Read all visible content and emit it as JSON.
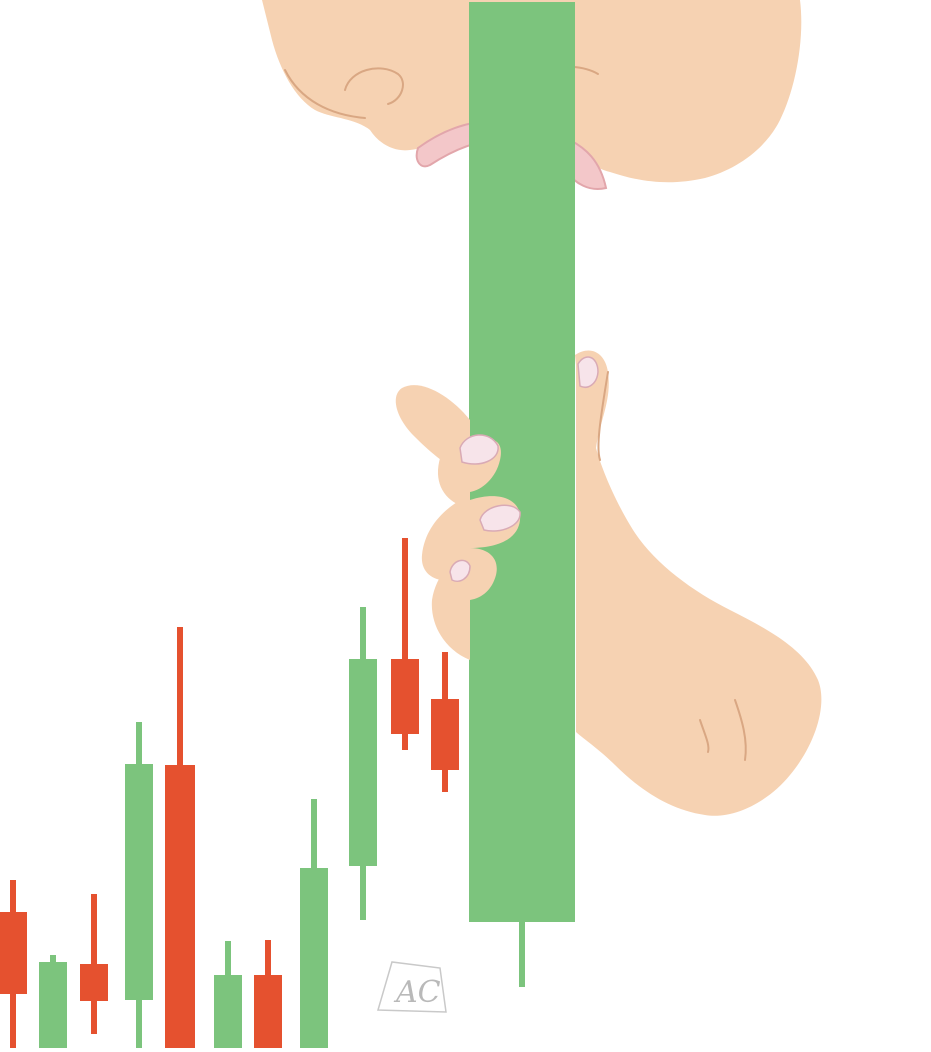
{
  "illustration": {
    "signature": "AC",
    "candles": [
      {
        "color": "red",
        "open": 140,
        "close": 58,
        "high": 172,
        "low": 4
      },
      {
        "color": "green",
        "open": 4,
        "close": 90,
        "high": 97,
        "low": 4
      },
      {
        "color": "red",
        "open": 88,
        "close": 51,
        "high": 158,
        "low": 18
      },
      {
        "color": "green",
        "open": 52,
        "close": 288,
        "high": 330,
        "low": 4
      },
      {
        "color": "red",
        "open": 287,
        "close": 4,
        "high": 425,
        "low": 4
      },
      {
        "color": "green",
        "open": 4,
        "close": 77,
        "high": 111,
        "low": 4
      },
      {
        "color": "red",
        "open": 77,
        "close": 4,
        "high": 112,
        "low": 4
      },
      {
        "color": "green",
        "open": 4,
        "close": 184,
        "high": 253,
        "low": 4
      },
      {
        "color": "green",
        "open": 186,
        "close": 393,
        "high": 445,
        "low": 132
      },
      {
        "color": "red",
        "open": 393,
        "close": 318,
        "high": 514,
        "low": 302
      },
      {
        "color": "red",
        "open": 353,
        "close": 282,
        "high": 400,
        "low": 260
      },
      {
        "color": "green",
        "open": 130,
        "close": 1050,
        "high": 1050,
        "low": 65
      }
    ],
    "colors": {
      "bull": "#7cc47d",
      "bear": "#e5512f",
      "skin": "#f6d2b2",
      "background": "#ffffff"
    }
  }
}
